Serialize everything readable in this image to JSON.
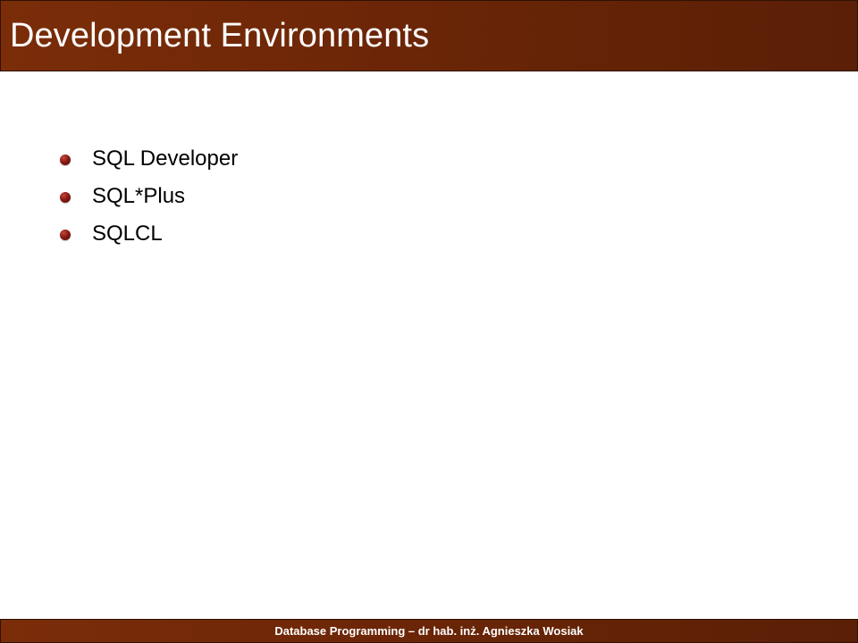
{
  "slide": {
    "title": "Development Environments",
    "bullets": [
      {
        "text": "SQL Developer"
      },
      {
        "text": "SQL*Plus"
      },
      {
        "text": "SQLCL"
      }
    ],
    "footer": "Database Programming – dr hab. inż. Agnieszka Wosiak"
  },
  "theme": {
    "header_color": "#6c2607",
    "footer_color": "#6c2607",
    "bullet_color": "#8b1a14",
    "text_color": "#000000",
    "background_color": "#ffffff"
  },
  "icons": {
    "bullet": "round-bullet-icon"
  }
}
